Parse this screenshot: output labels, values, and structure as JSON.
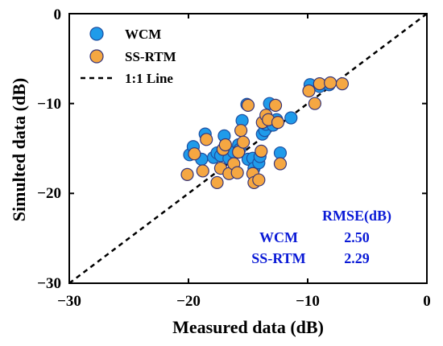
{
  "chart_data": {
    "type": "scatter",
    "xlabel": "Measured data (dB)",
    "ylabel": "Simulted data (dB)",
    "xlim": [
      -30,
      0
    ],
    "ylim": [
      -30,
      0
    ],
    "xticks": [
      "−30",
      "−20",
      "−10",
      "0"
    ],
    "yticks": [
      "−30",
      "−20",
      "−10",
      "0"
    ],
    "legend_position": "top-left",
    "reference_line": {
      "name": "1:1 Line",
      "from": [
        -30,
        -30
      ],
      "to": [
        0,
        0
      ],
      "style": "dashed",
      "color": "#000000"
    },
    "series": [
      {
        "name": "WCM",
        "color": "#1f9bea",
        "edge": "#1e4fa0",
        "points": [
          [
            -19.9,
            -15.7
          ],
          [
            -19.6,
            -14.8
          ],
          [
            -18.9,
            -16.2
          ],
          [
            -18.6,
            -13.4
          ],
          [
            -17.9,
            -16.0
          ],
          [
            -17.6,
            -15.5
          ],
          [
            -17.3,
            -15.8
          ],
          [
            -17.0,
            -13.6
          ],
          [
            -16.6,
            -16.1
          ],
          [
            -16.2,
            -15.4
          ],
          [
            -15.8,
            -14.6
          ],
          [
            -15.7,
            -15.1
          ],
          [
            -15.5,
            -11.9
          ],
          [
            -15.1,
            -10.1
          ],
          [
            -15.0,
            -16.2
          ],
          [
            -14.6,
            -16.1
          ],
          [
            -14.5,
            -17.2
          ],
          [
            -14.1,
            -16.6
          ],
          [
            -14.0,
            -15.9
          ],
          [
            -13.8,
            -13.4
          ],
          [
            -13.6,
            -13.0
          ],
          [
            -13.5,
            -12.3
          ],
          [
            -13.2,
            -10.0
          ],
          [
            -12.9,
            -12.4
          ],
          [
            -12.6,
            -11.8
          ],
          [
            -12.3,
            -15.5
          ],
          [
            -11.4,
            -11.6
          ],
          [
            -9.8,
            -7.9
          ],
          [
            -9.0,
            -8.1
          ],
          [
            -8.2,
            -7.9
          ]
        ]
      },
      {
        "name": "SS-RTM",
        "color": "#f5a742",
        "edge": "#35357a",
        "points": [
          [
            -20.1,
            -17.9
          ],
          [
            -19.5,
            -15.6
          ],
          [
            -18.8,
            -17.5
          ],
          [
            -18.5,
            -14.0
          ],
          [
            -17.6,
            -18.8
          ],
          [
            -17.3,
            -17.2
          ],
          [
            -17.1,
            -15.1
          ],
          [
            -16.9,
            -14.6
          ],
          [
            -16.6,
            -17.8
          ],
          [
            -16.2,
            -16.7
          ],
          [
            -15.9,
            -17.7
          ],
          [
            -15.8,
            -15.4
          ],
          [
            -15.6,
            -13.0
          ],
          [
            -15.4,
            -14.3
          ],
          [
            -15.0,
            -10.2
          ],
          [
            -14.6,
            -17.8
          ],
          [
            -14.5,
            -18.8
          ],
          [
            -14.1,
            -18.5
          ],
          [
            -13.9,
            -15.3
          ],
          [
            -13.8,
            -12.1
          ],
          [
            -13.5,
            -11.3
          ],
          [
            -13.3,
            -11.8
          ],
          [
            -12.7,
            -10.2
          ],
          [
            -12.3,
            -16.7
          ],
          [
            -12.5,
            -12.1
          ],
          [
            -9.9,
            -8.6
          ],
          [
            -9.4,
            -10.0
          ],
          [
            -9.0,
            -7.8
          ],
          [
            -8.1,
            -7.7
          ],
          [
            -7.1,
            -7.8
          ]
        ]
      }
    ],
    "stats_table": {
      "header": "RMSE(dB)",
      "rows": [
        {
          "label": "WCM",
          "value": "2.50"
        },
        {
          "label": "SS-RTM",
          "value": "2.29"
        }
      ]
    }
  }
}
